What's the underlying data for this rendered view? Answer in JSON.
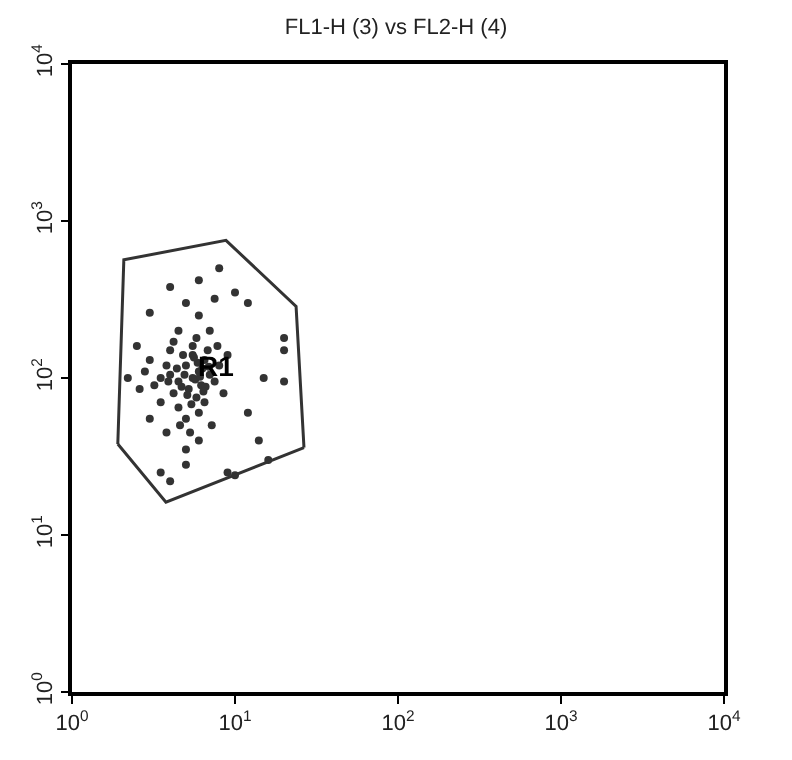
{
  "chart_data": {
    "type": "scatter",
    "title": "FL1-H (3) vs FL2-H (4)",
    "log": "xy",
    "grid": false,
    "marker": "circle",
    "xlim": [
      1,
      10000
    ],
    "ylim": [
      1,
      10000
    ],
    "xticks": [
      {
        "value": 1,
        "label": "10$^{0}$"
      },
      {
        "value": 10,
        "label": "10$^{1}$"
      },
      {
        "value": 100,
        "label": "10$^{2}$"
      },
      {
        "value": 1000,
        "label": "10$^{3}$"
      },
      {
        "value": 10000,
        "label": "10$^{4}$"
      }
    ],
    "yticks": [
      {
        "value": 1,
        "label": "10$^{0}$"
      },
      {
        "value": 10,
        "label": "10$^{1}$"
      },
      {
        "value": 100,
        "label": "10$^{2}$"
      },
      {
        "value": 1000,
        "label": "10$^{3}$"
      },
      {
        "value": 10000,
        "label": "10$^{4}$"
      }
    ],
    "annotations": [
      {
        "text": "R1",
        "x": 7.6,
        "y": 118
      }
    ],
    "series": [
      {
        "color": "#333333",
        "x": [
          5.5,
          6,
          4.5,
          5,
          6.5,
          4,
          5.2,
          6.2,
          4.8,
          7,
          3.5,
          5.8,
          4.2,
          6.8,
          5.5,
          3.8,
          7.5,
          4.5,
          5,
          6,
          3.2,
          2.8,
          4,
          5.8,
          7,
          4.5,
          3.5,
          6.5,
          8,
          3,
          5.3,
          6,
          4.6,
          7.2,
          5,
          3.8,
          2.6,
          8.5,
          9,
          6,
          5,
          7.5,
          10,
          4,
          8,
          6,
          3,
          12,
          20,
          20,
          15,
          20,
          12,
          14,
          3.5,
          4,
          5,
          9,
          10,
          16,
          2.5,
          2.2,
          3,
          4.2,
          5.5,
          6.3,
          4.9,
          5.7,
          6.6,
          5.1,
          4.4,
          5.9,
          6.9,
          5.4,
          4.7,
          6.1,
          5.6,
          7.8,
          3.9,
          6.4
        ],
        "values": [
          100,
          110,
          95,
          120,
          130,
          105,
          85,
          90,
          140,
          105,
          100,
          75,
          80,
          150,
          160,
          120,
          95,
          65,
          55,
          60,
          90,
          110,
          150,
          180,
          200,
          200,
          70,
          70,
          120,
          130,
          45,
          40,
          50,
          50,
          35,
          45,
          85,
          80,
          140,
          250,
          300,
          320,
          350,
          380,
          500,
          420,
          260,
          300,
          180,
          150,
          100,
          95,
          60,
          40,
          25,
          22,
          28,
          25,
          24,
          30,
          160,
          100,
          55,
          170,
          140,
          115,
          105,
          98,
          88,
          78,
          115,
          125,
          118,
          68,
          88,
          102,
          135,
          160,
          95,
          82
        ]
      },
      {
        "type": "line",
        "color": "#333333",
        "line_style": "solid",
        "marker": "none",
        "x": [
          1.91,
          2.08,
          8.8,
          23.7,
          26.5
        ],
        "values": [
          38,
          566,
          753,
          286,
          36
        ]
      },
      {
        "type": "line",
        "color": "#333333",
        "line_style": "solid",
        "marker": "none",
        "x": [
          1.91,
          3.77,
          26.5
        ],
        "values": [
          38,
          16.2,
          36
        ]
      }
    ]
  }
}
